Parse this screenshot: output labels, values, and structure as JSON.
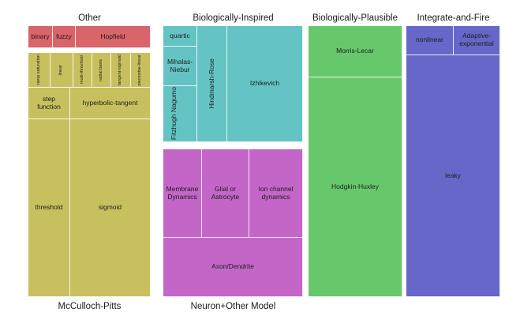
{
  "headers": {
    "other": "Other",
    "bio_inspired": "Biologically-Inspired",
    "bio_plausible": "Biologically-Plausible",
    "integrate_fire": "Integrate-and-Fire",
    "mcculloch": "McCulloch-Pitts",
    "neuron_other": "Neuron+Other Model"
  },
  "other": {
    "binary": "binary",
    "fuzzy": "fuzzy",
    "hopfield": "Hopfield"
  },
  "mcculloch": {
    "ramp": "ramp saturation",
    "linear": "linear",
    "multi_threshold": "multi-threshold",
    "radial_basis": "radial basis",
    "tangent_sigmoid": "tangent-sigmoid",
    "piecewise_linear": "piecewise-linear",
    "step": "step function",
    "hyperbolic": "hyperbolic-tangent",
    "threshold": "threshold",
    "sigmoid": "sigmoid"
  },
  "bio_inspired": {
    "quartic": "quartic",
    "mihalas": "Mihalas-Niebur",
    "fitzhugh": "Fitzhugh Nagumo",
    "hindmarsh": "Hindmarsh-Rose",
    "izhikevich": "Izhikevich"
  },
  "neuron_other": {
    "membrane": "Membrane Dynamics",
    "glial": "Glial or Astrocyte",
    "ion": "Ion channel dynamics",
    "axon": "Axon/Dendrite"
  },
  "bio_plausible": {
    "morris": "Morris-Lecar",
    "hodgkin": "Hodgkin-Huxley"
  },
  "integrate_fire": {
    "nonlinear": "nonlinear",
    "adaptive": "Adaptive-exponential",
    "leaky": "leaky"
  },
  "colors": {
    "other": "#d9646a",
    "mcculloch": "#c8c05e",
    "bio_inspired": "#63c4c3",
    "neuron_other": "#c465c8",
    "bio_plausible": "#67c86b",
    "integrate_fire": "#6667c9"
  }
}
